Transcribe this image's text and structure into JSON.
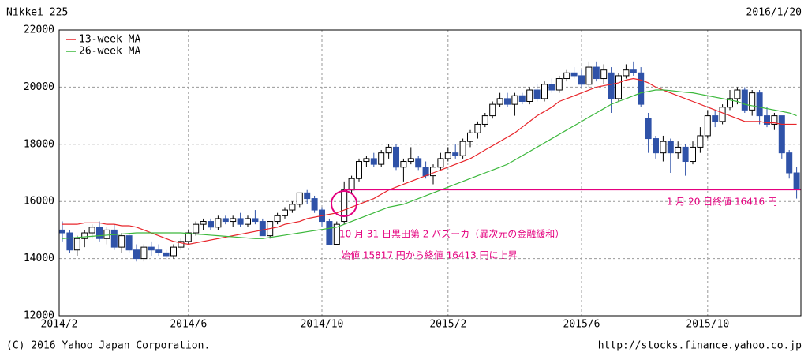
{
  "chart_data": {
    "type": "candlestick",
    "title": "Nikkei 225",
    "date": "2016/1/20",
    "categories": [
      "2014/2",
      null,
      null,
      null,
      null,
      null,
      null,
      null,
      null,
      null,
      null,
      null,
      null,
      null,
      null,
      null,
      null,
      "2014/6",
      null,
      null,
      null,
      null,
      null,
      null,
      null,
      null,
      null,
      null,
      null,
      null,
      null,
      null,
      null,
      null,
      null,
      "2014/10",
      null,
      null,
      null,
      null,
      null,
      null,
      null,
      null,
      null,
      null,
      null,
      null,
      null,
      null,
      null,
      null,
      "2015/2",
      null,
      null,
      null,
      null,
      null,
      null,
      null,
      null,
      null,
      null,
      null,
      null,
      null,
      null,
      null,
      null,
      null,
      "2015/6",
      null,
      null,
      null,
      null,
      null,
      null,
      null,
      null,
      null,
      null,
      null,
      null,
      null,
      null,
      null,
      null,
      "2015/10",
      null,
      null,
      null,
      null,
      null,
      null,
      null,
      null,
      null,
      null,
      null,
      null
    ],
    "candles": [
      [
        15000,
        15300,
        14600,
        14900
      ],
      [
        14900,
        15000,
        14200,
        14300
      ],
      [
        14300,
        14800,
        14100,
        14700
      ],
      [
        14700,
        15000,
        14400,
        14900
      ],
      [
        14900,
        15200,
        14700,
        15100
      ],
      [
        15100,
        15300,
        14600,
        14700
      ],
      [
        14700,
        15100,
        14500,
        15000
      ],
      [
        15000,
        15200,
        14300,
        14400
      ],
      [
        14400,
        14900,
        14200,
        14800
      ],
      [
        14800,
        14900,
        14200,
        14300
      ],
      [
        14300,
        14500,
        13900,
        14000
      ],
      [
        14000,
        14500,
        13900,
        14400
      ],
      [
        14400,
        14600,
        14100,
        14300
      ],
      [
        14300,
        14500,
        14100,
        14200
      ],
      [
        14200,
        14300,
        13950,
        14100
      ],
      [
        14100,
        14500,
        14000,
        14400
      ],
      [
        14400,
        14700,
        14300,
        14600
      ],
      [
        14600,
        15000,
        14500,
        14900
      ],
      [
        14900,
        15300,
        14800,
        15200
      ],
      [
        15200,
        15400,
        15000,
        15300
      ],
      [
        15300,
        15400,
        15000,
        15100
      ],
      [
        15100,
        15500,
        15000,
        15400
      ],
      [
        15400,
        15500,
        15200,
        15300
      ],
      [
        15300,
        15500,
        15100,
        15400
      ],
      [
        15400,
        15600,
        15100,
        15200
      ],
      [
        15200,
        15500,
        15100,
        15400
      ],
      [
        15400,
        15700,
        15200,
        15300
      ],
      [
        15300,
        15400,
        14800,
        14800
      ],
      [
        14800,
        15300,
        14700,
        15300
      ],
      [
        15300,
        15600,
        15200,
        15500
      ],
      [
        15500,
        15800,
        15400,
        15700
      ],
      [
        15700,
        16000,
        15600,
        15900
      ],
      [
        15900,
        16300,
        15800,
        16300
      ],
      [
        16300,
        16400,
        15900,
        16100
      ],
      [
        16100,
        16200,
        15600,
        15700
      ],
      [
        15700,
        15800,
        15100,
        15300
      ],
      [
        15300,
        15400,
        14500,
        14500
      ],
      [
        14500,
        15300,
        14500,
        15200
      ],
      [
        15300,
        16700,
        15200,
        16400
      ],
      [
        16400,
        16900,
        16300,
        16800
      ],
      [
        16800,
        17500,
        16700,
        17400
      ],
      [
        17400,
        17600,
        17200,
        17500
      ],
      [
        17500,
        17700,
        17200,
        17300
      ],
      [
        17300,
        17800,
        17200,
        17700
      ],
      [
        17700,
        18000,
        17500,
        17900
      ],
      [
        17900,
        18000,
        17100,
        17200
      ],
      [
        17200,
        17500,
        16700,
        17400
      ],
      [
        17400,
        17900,
        17300,
        17500
      ],
      [
        17500,
        17600,
        17100,
        17200
      ],
      [
        17200,
        17400,
        16800,
        16900
      ],
      [
        16900,
        17300,
        16600,
        17200
      ],
      [
        17200,
        17700,
        17100,
        17500
      ],
      [
        17500,
        17900,
        17400,
        17700
      ],
      [
        17700,
        18000,
        17500,
        17600
      ],
      [
        17600,
        18200,
        17500,
        18100
      ],
      [
        18100,
        18500,
        17900,
        18400
      ],
      [
        18400,
        18800,
        18200,
        18700
      ],
      [
        18700,
        19100,
        18600,
        19000
      ],
      [
        19000,
        19500,
        18900,
        19400
      ],
      [
        19400,
        19800,
        19300,
        19600
      ],
      [
        19600,
        19800,
        19300,
        19400
      ],
      [
        19400,
        19800,
        19000,
        19700
      ],
      [
        19700,
        19800,
        19400,
        19500
      ],
      [
        19500,
        20000,
        19400,
        19900
      ],
      [
        19900,
        20100,
        19500,
        19600
      ],
      [
        19600,
        20200,
        19500,
        20100
      ],
      [
        20100,
        20300,
        19800,
        19900
      ],
      [
        19900,
        20400,
        19800,
        20300
      ],
      [
        20300,
        20600,
        20200,
        20500
      ],
      [
        20500,
        20700,
        20300,
        20400
      ],
      [
        20400,
        20600,
        20000,
        20100
      ],
      [
        20100,
        20900,
        20000,
        20700
      ],
      [
        20700,
        20900,
        20200,
        20300
      ],
      [
        20300,
        20800,
        20100,
        20600
      ],
      [
        20500,
        20700,
        19100,
        19600
      ],
      [
        19600,
        20500,
        19500,
        20400
      ],
      [
        20400,
        20800,
        20300,
        20600
      ],
      [
        20600,
        20900,
        20400,
        20500
      ],
      [
        20500,
        20700,
        19300,
        19400
      ],
      [
        18900,
        19100,
        17700,
        18200
      ],
      [
        18200,
        18300,
        17500,
        17700
      ],
      [
        17700,
        18300,
        17400,
        18100
      ],
      [
        18100,
        18200,
        17000,
        17700
      ],
      [
        17700,
        18100,
        17500,
        17900
      ],
      [
        17900,
        18000,
        16900,
        17400
      ],
      [
        17400,
        18100,
        17300,
        17900
      ],
      [
        17900,
        18600,
        17700,
        18300
      ],
      [
        18300,
        19200,
        18200,
        19000
      ],
      [
        19000,
        19200,
        18600,
        18800
      ],
      [
        18800,
        19400,
        18700,
        19300
      ],
      [
        19300,
        19900,
        19200,
        19600
      ],
      [
        19600,
        20000,
        19400,
        19900
      ],
      [
        19900,
        20000,
        19100,
        19200
      ],
      [
        19200,
        19900,
        19000,
        19800
      ],
      [
        19800,
        19900,
        18700,
        19000
      ],
      [
        19000,
        19300,
        18600,
        18700
      ],
      [
        18700,
        19100,
        18500,
        19000
      ],
      [
        19000,
        19000,
        17500,
        17700
      ],
      [
        17700,
        17800,
        16800,
        17000
      ],
      [
        17000,
        17200,
        16100,
        16416
      ]
    ],
    "up_color": "#ffffff",
    "down_color": "#2f52a8",
    "series": [
      {
        "name": "13-week MA",
        "color": "#e8262b",
        "values": [
          15200,
          15200,
          15200,
          15250,
          15250,
          15250,
          15200,
          15200,
          15150,
          15150,
          15100,
          15000,
          14900,
          14800,
          14700,
          14600,
          14550,
          14500,
          14550,
          14600,
          14650,
          14700,
          14750,
          14800,
          14850,
          14900,
          14950,
          15000,
          15050,
          15100,
          15200,
          15250,
          15300,
          15400,
          15450,
          15500,
          15550,
          15600,
          15700,
          15800,
          15900,
          16000,
          16100,
          16250,
          16400,
          16500,
          16600,
          16700,
          16800,
          16900,
          17000,
          17100,
          17200,
          17300,
          17400,
          17500,
          17650,
          17800,
          17950,
          18100,
          18250,
          18400,
          18600,
          18800,
          19000,
          19150,
          19300,
          19500,
          19600,
          19700,
          19800,
          19900,
          20000,
          20050,
          20100,
          20150,
          20250,
          20300,
          20250,
          20150,
          20000,
          19900,
          19800,
          19700,
          19600,
          19500,
          19400,
          19300,
          19200,
          19100,
          19000,
          18900,
          18800,
          18800,
          18800,
          18750,
          18750,
          18700,
          18700,
          18700
        ]
      },
      {
        "name": "26-week MA",
        "color": "#3cb83c",
        "values": [
          14700,
          14720,
          14740,
          14760,
          14780,
          14800,
          14820,
          14840,
          14860,
          14880,
          14900,
          14900,
          14900,
          14900,
          14900,
          14900,
          14900,
          14880,
          14860,
          14840,
          14820,
          14800,
          14780,
          14760,
          14740,
          14720,
          14700,
          14700,
          14740,
          14780,
          14820,
          14860,
          14900,
          14940,
          14980,
          15020,
          15060,
          15100,
          15200,
          15300,
          15400,
          15500,
          15600,
          15700,
          15800,
          15850,
          15900,
          16000,
          16100,
          16200,
          16300,
          16400,
          16500,
          16600,
          16700,
          16800,
          16900,
          17000,
          17100,
          17200,
          17300,
          17450,
          17600,
          17750,
          17900,
          18050,
          18200,
          18350,
          18500,
          18650,
          18800,
          18950,
          19100,
          19250,
          19400,
          19500,
          19600,
          19700,
          19800,
          19850,
          19900,
          19900,
          19880,
          19850,
          19820,
          19800,
          19750,
          19700,
          19650,
          19600,
          19550,
          19500,
          19400,
          19350,
          19300,
          19250,
          19200,
          19150,
          19100,
          19000
        ]
      }
    ],
    "ylim": [
      12000,
      22000
    ],
    "yticks": [
      12000,
      14000,
      16000,
      18000,
      20000,
      22000
    ],
    "grid": true,
    "reference_line": {
      "value": 16416,
      "label": "1 月 20 日終値 16416 円",
      "color": "#e4007f"
    },
    "annotations": [
      "10 月 31 日黒田第 2 バズーカ（異次元の金融緩和）",
      "始値 15817 円から終値 16413 円に上昇"
    ],
    "copyright": "(C) 2016 Yahoo Japan Corporation.",
    "source": "http://stocks.finance.yahoo.co.jp"
  }
}
